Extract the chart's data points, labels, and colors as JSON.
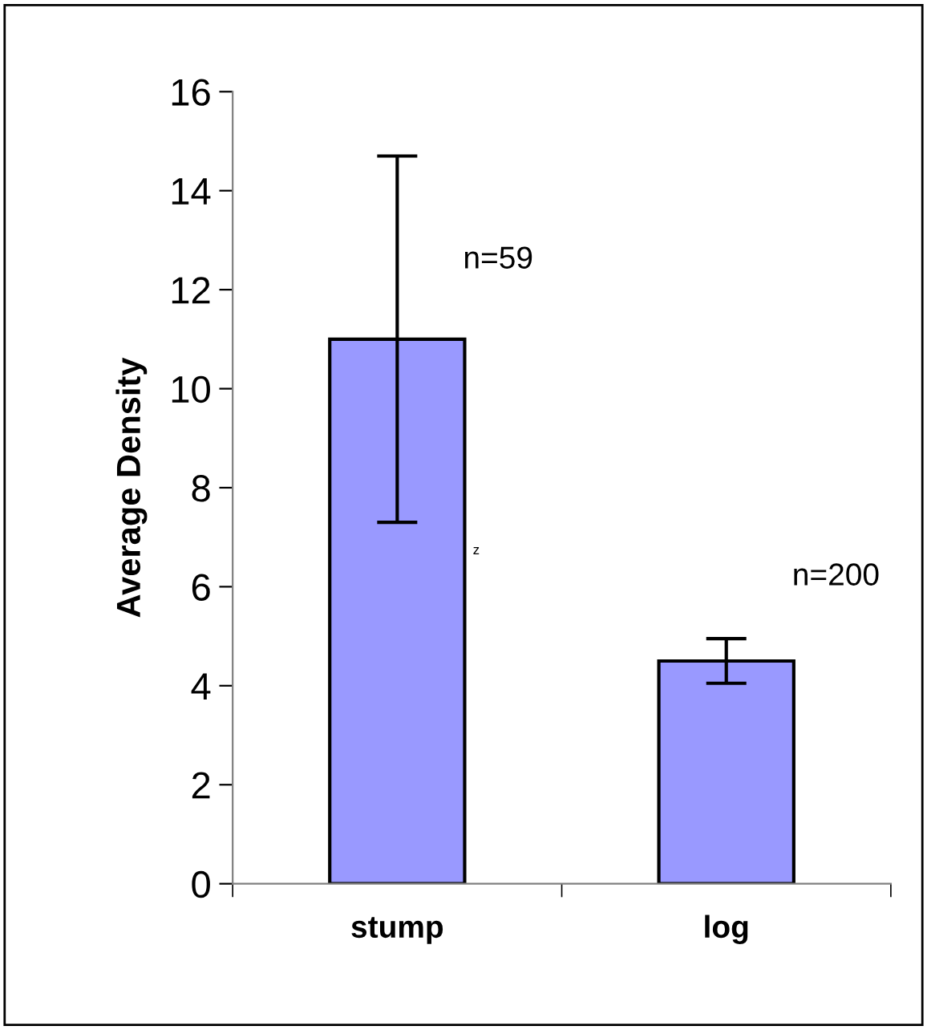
{
  "chart_data": {
    "type": "bar",
    "ylabel": "Average Density",
    "categories": [
      "stump",
      "log"
    ],
    "values": [
      11.0,
      4.5
    ],
    "errors": [
      3.7,
      0.45
    ],
    "color": "#9999ff",
    "ylim": [
      0,
      16
    ],
    "yticks": [
      0,
      2,
      4,
      6,
      8,
      10,
      12,
      14,
      16
    ],
    "grid": false,
    "legend": false,
    "annotations": [
      "n=59",
      "n=200",
      "z"
    ]
  }
}
